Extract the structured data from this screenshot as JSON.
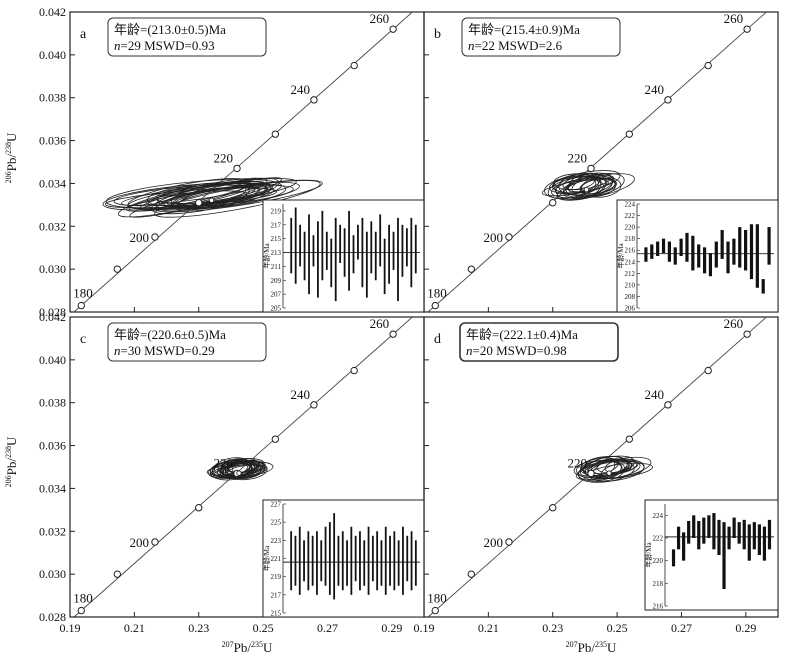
{
  "axes": {
    "xlabel_pre": "207",
    "xlabel_main": "Pb/",
    "xlabel_sup2": "235",
    "xlabel_end": "U",
    "ylabel_pre": "206",
    "ylabel_main": "Pb/",
    "ylabel_sup2": "238",
    "ylabel_end": "U",
    "x_ticks": [
      "0.19",
      "0.21",
      "0.23",
      "0.25",
      "0.27",
      "0.29"
    ],
    "y_ticks": [
      "0.042",
      "0.040",
      "0.038",
      "0.036",
      "0.034",
      "0.032",
      "0.030",
      "0.028"
    ],
    "inset_ylabel": "年龄/Ma"
  },
  "chart_data": [
    {
      "type": "scatter",
      "panel": "a",
      "age_label": "年龄=(213.0±0.5)Ma",
      "n_label": "n",
      "stats_label": "=29  MSWD=0.93",
      "xlim": [
        0.19,
        0.3
      ],
      "ylim": [
        0.028,
        0.042
      ],
      "concordia_ages": [
        180,
        200,
        220,
        240,
        260
      ],
      "concordia_points": [
        [
          0.1935,
          0.0283
        ],
        [
          0.2047,
          0.03
        ],
        [
          0.2164,
          0.0315
        ],
        [
          0.23,
          0.0331
        ],
        [
          0.2419,
          0.0347
        ],
        [
          0.2538,
          0.0363
        ],
        [
          0.2658,
          0.0379
        ],
        [
          0.2783,
          0.0395
        ],
        [
          0.2904,
          0.0412
        ]
      ],
      "ellipse_center": [
        0.234,
        0.0334
      ],
      "ellipse_count": 29,
      "inset": {
        "ytick_labels": [
          "219",
          "217",
          "215",
          "213",
          "211",
          "209",
          "207",
          "205"
        ],
        "ymin": 205,
        "ymax": 220,
        "mean": 213.0,
        "lows": [
          210,
          208.5,
          211,
          209,
          207,
          211,
          206.5,
          209,
          210.5,
          208,
          206,
          211.5,
          209.5,
          207.5,
          210,
          212,
          208,
          206.5,
          210,
          209,
          211,
          207,
          208.5,
          210.5,
          206,
          209.5,
          211,
          208,
          210
        ],
        "highs": [
          218,
          219.5,
          217,
          216,
          218.5,
          215.5,
          217.5,
          219,
          216,
          215,
          218,
          217,
          216.5,
          219,
          215.5,
          217,
          218,
          216,
          217.5,
          216,
          218.5,
          215,
          217,
          216,
          218,
          217,
          216.5,
          218,
          217
        ]
      }
    },
    {
      "type": "scatter",
      "panel": "b",
      "age_label": "年龄=(215.4±0.9)Ma",
      "n_label": "n",
      "stats_label": "=22  MSWD=2.6",
      "xlim": [
        0.19,
        0.3
      ],
      "ylim": [
        0.028,
        0.042
      ],
      "concordia_ages": [
        180,
        200,
        220,
        240,
        260
      ],
      "concordia_points": [
        [
          0.1935,
          0.0283
        ],
        [
          0.2047,
          0.03
        ],
        [
          0.2164,
          0.0315
        ],
        [
          0.23,
          0.0331
        ],
        [
          0.2419,
          0.0347
        ],
        [
          0.2538,
          0.0363
        ],
        [
          0.2658,
          0.0379
        ],
        [
          0.2783,
          0.0395
        ],
        [
          0.2904,
          0.0412
        ]
      ],
      "ellipse_center": [
        0.2405,
        0.0339
      ],
      "ellipse_count": 22,
      "inset": {
        "ytick_labels": [
          "224",
          "222",
          "220",
          "218",
          "216",
          "214",
          "212",
          "210",
          "208",
          "206"
        ],
        "ymin": 206,
        "ymax": 224,
        "mean": 215.4,
        "lows": [
          214,
          214.5,
          215,
          215.5,
          214,
          213.5,
          215,
          214,
          212.5,
          213,
          212,
          211.5,
          213,
          214.5,
          212,
          213.5,
          213,
          212.5,
          211,
          209.5,
          208.5,
          213.5
        ],
        "highs": [
          216.5,
          217,
          217.5,
          218,
          217.5,
          216.5,
          218,
          219,
          218.5,
          217,
          216.5,
          215.5,
          217.5,
          219.5,
          217.5,
          218,
          220,
          219.5,
          220.5,
          220.5,
          211,
          220
        ]
      }
    },
    {
      "type": "scatter",
      "panel": "c",
      "age_label": "年龄=(220.6±0.5)Ma",
      "n_label": "n",
      "stats_label": "=30  MSWD=0.29",
      "xlim": [
        0.19,
        0.3
      ],
      "ylim": [
        0.028,
        0.042
      ],
      "concordia_ages": [
        180,
        200,
        220,
        240,
        260
      ],
      "concordia_points": [
        [
          0.1935,
          0.0283
        ],
        [
          0.2047,
          0.03
        ],
        [
          0.2164,
          0.0315
        ],
        [
          0.23,
          0.0331
        ],
        [
          0.2419,
          0.0347
        ],
        [
          0.2538,
          0.0363
        ],
        [
          0.2658,
          0.0379
        ],
        [
          0.2783,
          0.0395
        ],
        [
          0.2904,
          0.0412
        ]
      ],
      "ellipse_center": [
        0.2425,
        0.0349
      ],
      "ellipse_count": 30,
      "inset": {
        "ytick_labels": [
          "227",
          "225",
          "223",
          "221",
          "219",
          "217",
          "215"
        ],
        "ymin": 215,
        "ymax": 227,
        "mean": 220.6,
        "lows": [
          217.5,
          218,
          217,
          218.5,
          217.5,
          218,
          217,
          218.5,
          218,
          217,
          216.5,
          218,
          217.5,
          218,
          217,
          218.5,
          217.5,
          218,
          217,
          218.5,
          217.5,
          218,
          217,
          218,
          217.5,
          218,
          217,
          218.5,
          217.5,
          218
        ],
        "highs": [
          224,
          223.5,
          224.5,
          223,
          224,
          223.5,
          224,
          223,
          224.5,
          225,
          226,
          223.5,
          224,
          223,
          224.5,
          223.5,
          224,
          223,
          224.5,
          223.5,
          224,
          223,
          224.5,
          223.5,
          224,
          223,
          224.5,
          223.5,
          224,
          223
        ]
      }
    },
    {
      "type": "scatter",
      "panel": "d",
      "age_label": "年龄=(222.1±0.4)Ma",
      "n_label": "n",
      "stats_label": "=20  MSWD=0.98",
      "xlim": [
        0.19,
        0.3
      ],
      "ylim": [
        0.028,
        0.042
      ],
      "concordia_ages": [
        180,
        200,
        220,
        240,
        260
      ],
      "concordia_points": [
        [
          0.1935,
          0.0283
        ],
        [
          0.2047,
          0.03
        ],
        [
          0.2164,
          0.0315
        ],
        [
          0.23,
          0.0331
        ],
        [
          0.2419,
          0.0347
        ],
        [
          0.2538,
          0.0363
        ],
        [
          0.2658,
          0.0379
        ],
        [
          0.2783,
          0.0395
        ],
        [
          0.2904,
          0.0412
        ]
      ],
      "ellipse_center": [
        0.2475,
        0.0349
      ],
      "ellipse_count": 20,
      "inset": {
        "ytick_labels": [
          "224",
          "222",
          "220",
          "218",
          "216"
        ],
        "ymin": 216,
        "ymax": 225,
        "mean": 222.1,
        "lows": [
          219.5,
          221,
          220,
          221.5,
          222,
          221,
          221.5,
          222,
          221,
          220.5,
          217.5,
          221,
          222,
          221.5,
          221,
          220,
          221,
          220.5,
          220,
          221
        ],
        "highs": [
          221,
          223,
          222.5,
          223.5,
          224,
          223.5,
          223.8,
          224,
          224.2,
          223.6,
          223.4,
          223,
          223.8,
          223.4,
          223.6,
          223.2,
          223.4,
          223.2,
          223,
          223.6
        ]
      }
    }
  ]
}
